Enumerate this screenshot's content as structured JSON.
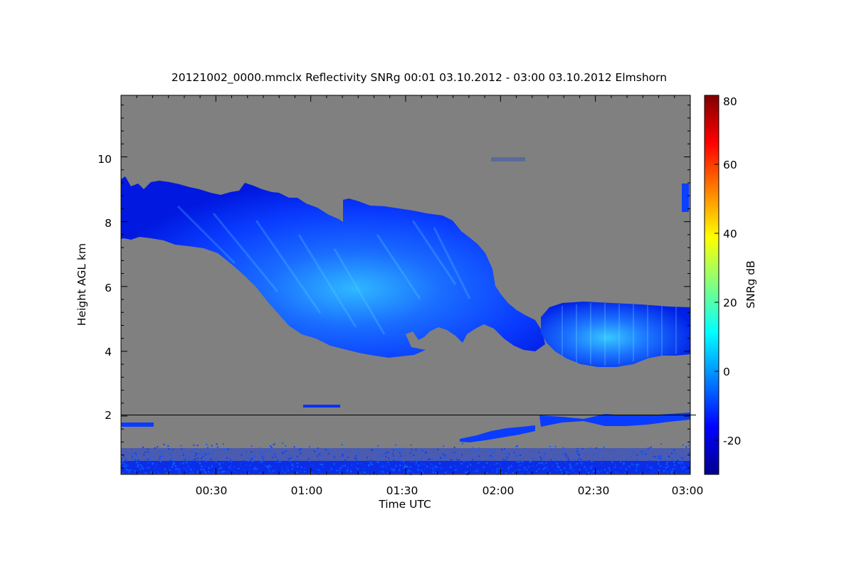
{
  "chart_data": {
    "type": "heatmap",
    "title": "20121002_0000.mmclx Reflectivity SNRg   00:01 03.10.2012 - 03:00 03.10.2012 Elmshorn",
    "xlabel": "Time UTC",
    "ylabel": "Height AGL km",
    "x_ticks": [
      "00:30",
      "01:00",
      "01:30",
      "02:00",
      "02:30",
      "03:00"
    ],
    "y_ticks": [
      "2",
      "4",
      "6",
      "8",
      "10"
    ],
    "xlim_min": [
      1,
      180
    ],
    "ylim_km": [
      0.2,
      11.9
    ],
    "background_color": "#808080",
    "reference_line_km": 2.0,
    "colorbar": {
      "label": "SNRg dB",
      "ticks": [
        "-20",
        "0",
        "20",
        "40",
        "60",
        "80"
      ],
      "range": [
        -30,
        80
      ],
      "colors": [
        "#00008f",
        "#0000ff",
        "#0080ff",
        "#00ffff",
        "#80ff80",
        "#ffff00",
        "#ff8000",
        "#ff0000",
        "#800000"
      ]
    },
    "features": [
      {
        "name": "cirrus-deck",
        "time_min": [
          1,
          153
        ],
        "top_km": [
          9.3,
          9.1,
          9.0,
          8.7,
          8.2,
          6.3,
          4.8
        ],
        "base_km": [
          7.7,
          7.4,
          6.6,
          4.9,
          4.1,
          4.1,
          4.3
        ],
        "peak_snr_db": 2
      },
      {
        "name": "mid-level-layer",
        "time_min": [
          156,
          180
        ],
        "top_km": [
          5.3,
          5.3
        ],
        "base_km": [
          3.6,
          3.9
        ],
        "peak_snr_db": 3
      },
      {
        "name": "low-layer",
        "time_min": [
          110,
          180
        ],
        "height_km": [
          1.3,
          2.0
        ],
        "snr_db": -20
      },
      {
        "name": "boundary-layer-clutter",
        "time_min": [
          1,
          180
        ],
        "height_km": [
          0.2,
          0.7
        ],
        "snr_db": -22
      }
    ]
  }
}
